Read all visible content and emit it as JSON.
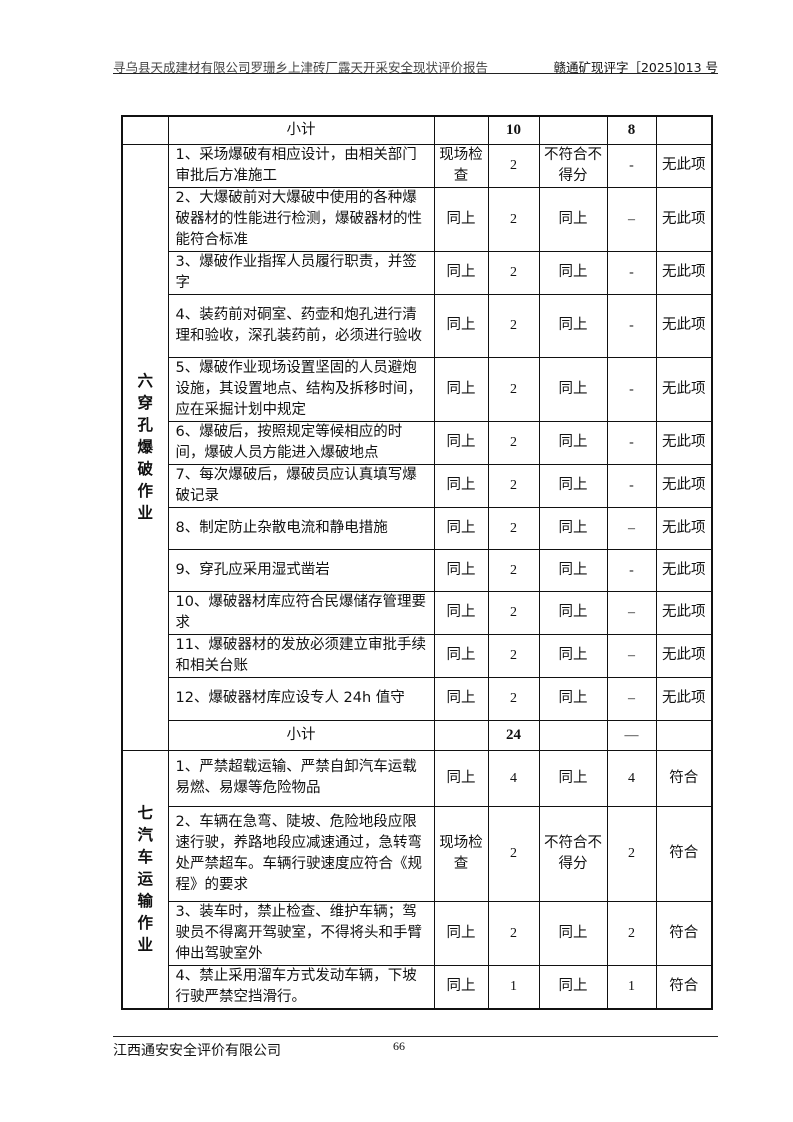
{
  "header": {
    "title": "寻乌县天成建材有限公司罗珊乡上津砖厂露天开采安全现状评价报告",
    "doc_no": "赣通矿现评字［2025]013 号"
  },
  "top_subtotal": {
    "label": "小计",
    "score": "10",
    "got": "8"
  },
  "section6": {
    "name": "六穿孔爆破作业",
    "rows": [
      {
        "item": "1、采场爆破有相应设计，由相关部门审批后方准施工",
        "method": "现场检查",
        "score": "2",
        "rule": "不符合不得分",
        "got": "-",
        "result": "无此项",
        "h": 42
      },
      {
        "item": "2、大爆破前对大爆破中使用的各种爆破器材的性能进行检测，爆破器材的性能符合标准",
        "method": "同上",
        "score": "2",
        "rule": "同上",
        "got": "–",
        "result": "无此项",
        "h": 63
      },
      {
        "item": "3、爆破作业指挥人员履行职责，并签字",
        "method": "同上",
        "score": "2",
        "rule": "同上",
        "got": "-",
        "result": "无此项",
        "h": 42
      },
      {
        "item": "4、装药前对硐室、药壶和炮孔进行清理和验收，深孔装药前，必须进行验收",
        "method": "同上",
        "score": "2",
        "rule": "同上",
        "got": "-",
        "result": "无此项",
        "h": 63
      },
      {
        "item": "5、爆破作业现场设置坚固的人员避炮设施，其设置地点、结构及拆移时间，应在采掘计划中规定",
        "method": "同上",
        "score": "2",
        "rule": "同上",
        "got": "-",
        "result": "无此项",
        "h": 63
      },
      {
        "item": "6、爆破后，按照规定等候相应的时间，爆破人员方能进入爆破地点",
        "method": "同上",
        "score": "2",
        "rule": "同上",
        "got": "-",
        "result": "无此项",
        "h": 42
      },
      {
        "item": "7、每次爆破后，爆破员应认真填写爆破记录",
        "method": "同上",
        "score": "2",
        "rule": "同上",
        "got": "-",
        "result": "无此项",
        "h": 42
      },
      {
        "item": "8、制定防止杂散电流和静电措施",
        "method": "同上",
        "score": "2",
        "rule": "同上",
        "got": "–",
        "result": "无此项",
        "h": 42
      },
      {
        "item": "9、穿孔应采用湿式凿岩",
        "method": "同上",
        "score": "2",
        "rule": "同上",
        "got": "-",
        "result": "无此项",
        "h": 42
      },
      {
        "item": "10、爆破器材库应符合民爆储存管理要求",
        "method": "同上",
        "score": "2",
        "rule": "同上",
        "got": "–",
        "result": "无此项",
        "h": 42
      },
      {
        "item": "11、爆破器材的发放必须建立审批手续和相关台账",
        "method": "同上",
        "score": "2",
        "rule": "同上",
        "got": "–",
        "result": "无此项",
        "h": 42
      },
      {
        "item": "12、爆破器材库应设专人 24h 值守",
        "method": "同上",
        "score": "2",
        "rule": "同上",
        "got": "–",
        "result": "无此项",
        "h": 43
      }
    ],
    "subtotal": {
      "label": "小计",
      "score": "24",
      "got": "—"
    }
  },
  "section7": {
    "name": "七汽车运输作业",
    "rows": [
      {
        "item": "1、严禁超载运输、严禁自卸汽车运载易燃、易爆等危险物品",
        "method": "同上",
        "score": "4",
        "rule": "同上",
        "got": "4",
        "result": "符合",
        "h": 56
      },
      {
        "item": "2、车辆在急弯、陡坡、危险地段应限速行驶，养路地段应减速通过，急转弯处严禁超车。车辆行驶速度应符合《规程》的要求",
        "method": "现场检查",
        "score": "2",
        "rule": "不符合不得分",
        "got": "2",
        "result": "符合",
        "h": 95
      },
      {
        "item": "3、装车时，禁止检查、维护车辆；驾驶员不得离开驾驶室，不得将头和手臂伸出驾驶室外",
        "method": "同上",
        "score": "2",
        "rule": "同上",
        "got": "2",
        "result": "符合",
        "h": 62
      },
      {
        "item": "4、禁止采用溜车方式发动车辆，下坡行驶严禁空挡滑行。",
        "method": "同上",
        "score": "1",
        "rule": "同上",
        "got": "1",
        "result": "符合",
        "h": 43
      }
    ]
  },
  "footer": {
    "company": "江西通安安全评价有限公司",
    "page": "66"
  }
}
